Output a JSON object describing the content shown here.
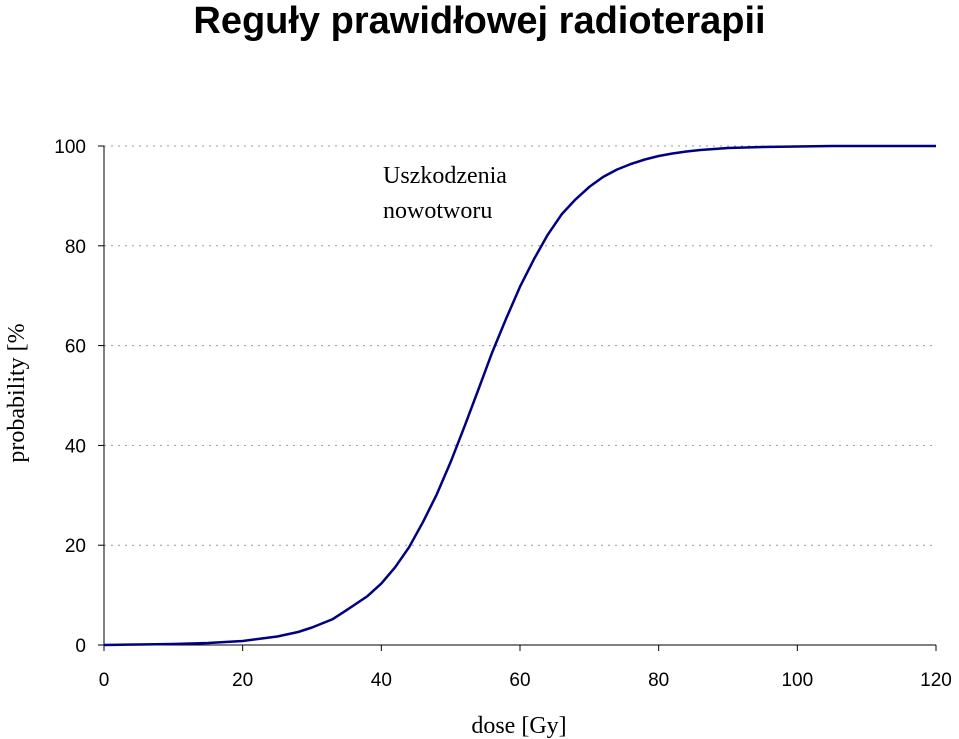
{
  "chart_data": {
    "type": "line",
    "title": "Reguły prawidłowej radioterapii",
    "xlabel": "dose [Gy]",
    "ylabel": "probability [%",
    "xlim": [
      0,
      120
    ],
    "ylim": [
      0,
      100
    ],
    "xticks": [
      "0",
      "20",
      "40",
      "60",
      "80",
      "100",
      "120"
    ],
    "yticks": [
      "0",
      "20",
      "40",
      "60",
      "80",
      "100"
    ],
    "grid": true,
    "annotation": [
      "Uszkodzenia",
      "nowotworu"
    ],
    "series": [
      {
        "color": "#000080",
        "x": [
          0,
          5,
          10,
          15,
          20,
          25,
          28,
          30,
          33,
          35,
          38,
          40,
          42,
          44,
          46,
          48,
          50,
          52,
          54,
          56,
          58,
          60,
          62,
          64,
          66,
          68,
          70,
          72,
          74,
          76,
          78,
          80,
          82,
          84,
          86,
          88,
          90,
          95,
          100,
          105,
          110,
          115,
          120
        ],
        "y": [
          0,
          0.1,
          0.2,
          0.4,
          0.8,
          1.7,
          2.6,
          3.5,
          5.2,
          7,
          9.8,
          12.3,
          15.6,
          19.6,
          24.6,
          30.2,
          36.7,
          43.8,
          51.2,
          58.7,
          65.4,
          71.8,
          77.3,
          82.2,
          86.3,
          89.3,
          91.8,
          93.8,
          95.3,
          96.4,
          97.3,
          98,
          98.5,
          98.9,
          99.2,
          99.4,
          99.6,
          99.8,
          99.9,
          100,
          100,
          100,
          100
        ]
      }
    ]
  }
}
